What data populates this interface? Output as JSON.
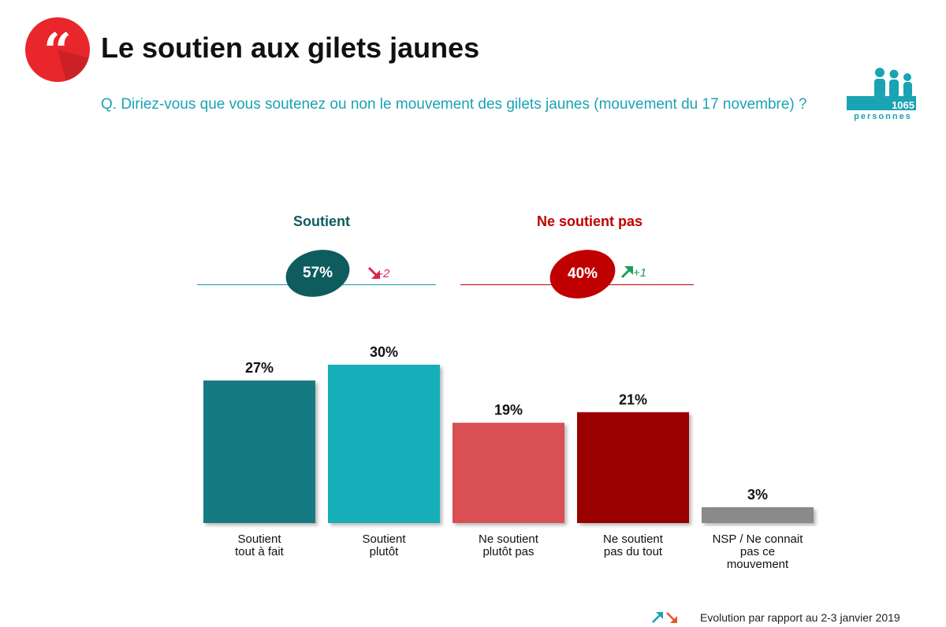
{
  "header": {
    "title": "Le soutien aux gilets jaunes",
    "question": "Q. Diriez-vous que vous soutenez ou non le mouvement des gilets jaunes (mouvement du 17 novembre) ?",
    "quote_glyph": "“",
    "sample_count": "1065",
    "sample_unit": "personnes"
  },
  "groups": [
    {
      "label": "Soutient",
      "value_label": "57%",
      "evolution": "-2",
      "direction": "down",
      "color": "#0e5c5e"
    },
    {
      "label": "Ne soutient pas",
      "value_label": "40%",
      "evolution": "+1",
      "direction": "up",
      "color": "#c00000"
    }
  ],
  "colors": {
    "accent_teal": "#1aa3b3",
    "logo_red": "#e8262c",
    "arrow_up": "#1a9e55",
    "arrow_down": "#d9264f"
  },
  "chart_data": {
    "type": "bar",
    "categories": [
      "Soutient tout à fait",
      "Soutient plutôt",
      "Ne soutient plutôt pas",
      "Ne soutient pas du tout",
      "NSP / Ne connait pas ce mouvement"
    ],
    "category_lines": [
      [
        "Soutient",
        "tout à fait"
      ],
      [
        "Soutient",
        "plutôt"
      ],
      [
        "Ne soutient",
        "plutôt pas"
      ],
      [
        "Ne soutient",
        "pas du tout"
      ],
      [
        "NSP / Ne connait",
        "pas ce",
        "mouvement"
      ]
    ],
    "values": [
      27,
      30,
      19,
      21,
      3
    ],
    "value_labels": [
      "27%",
      "30%",
      "19%",
      "21%",
      "3%"
    ],
    "colors": [
      "#137a82",
      "#16aeb8",
      "#d94f52",
      "#9b0000",
      "#8a8a8a"
    ],
    "unit": "%",
    "ylim": [
      0,
      30
    ],
    "grid": false,
    "legend": "none"
  },
  "footer": {
    "note": "Evolution par rapport au 2-3 janvier 2019"
  }
}
